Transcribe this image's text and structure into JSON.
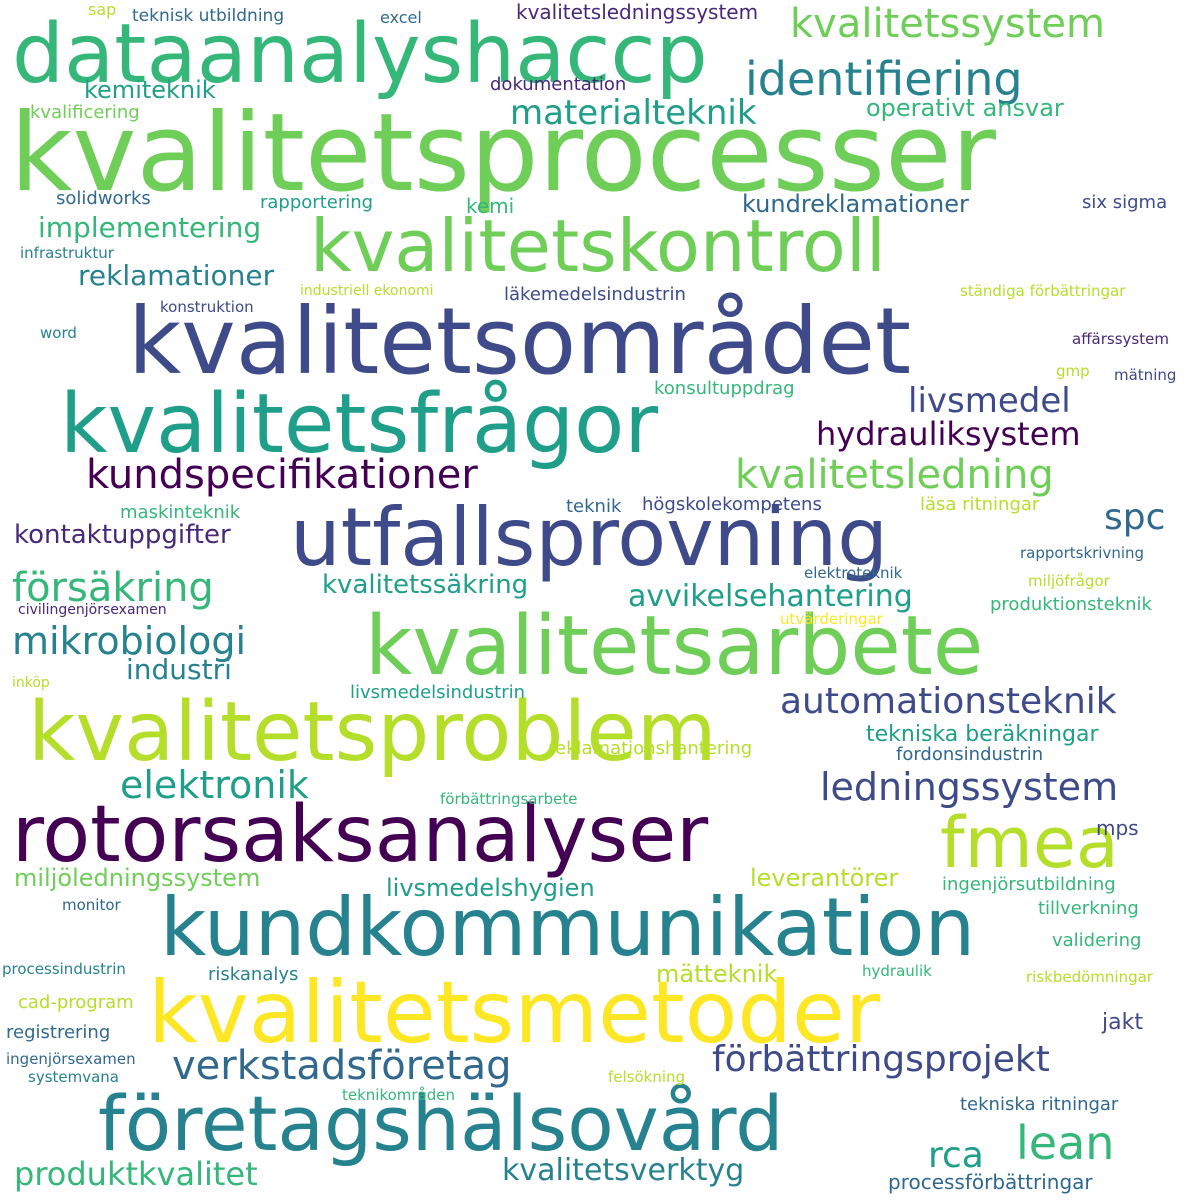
{
  "palette": {
    "deep_purple": "#440154",
    "purple": "#482878",
    "indigo": "#3e4a89",
    "blue": "#31688e",
    "teal_blue": "#26828e",
    "teal": "#1f9e89",
    "green_teal": "#35b779",
    "green": "#6ece58",
    "lime": "#b5de2b",
    "yellow": "#fde725"
  },
  "words": [
    "kvalitetsprocesser",
    "dataanalyshaccp",
    "kvalitetssystem",
    "identifiering",
    "kvalitetskontroll",
    "kvalitetsområdet",
    "kvalitetsfrågor",
    "utfallsprovning",
    "kvalitetsarbete",
    "kvalitetsproblem",
    "rotorsaksanalyser",
    "kundkommunikation",
    "kvalitetsmetoder",
    "företagshälsovård",
    "fmea",
    "kundspecifikationer",
    "kvalitetsledning",
    "hydrauliksystem",
    "livsmedel",
    "ledningssystem",
    "förbättringsprojekt",
    "verkstadsföretag",
    "automationsteknik",
    "lean",
    "materialteknik",
    "kemiteknik",
    "elektronik",
    "mikrobiologi",
    "försäkring",
    "produktkvalitet",
    "kvalitetsverktyg",
    "rca",
    "spc",
    "avvikelsehantering",
    "kvalitetssäkring",
    "kontaktuppgifter",
    "implementering",
    "reklamationer",
    "industri",
    "miljöledningssystem",
    "livsmedelshygien",
    "leverantörer",
    "kundreklamationer",
    "operativt ansvar",
    "tekniska beräkningar",
    "mätteknik",
    "kvalitetsledningssystem",
    "teknisk utbildning",
    "excel",
    "sap",
    "dokumentation",
    "kvalificering",
    "solidworks",
    "rapportering",
    "kemi",
    "six sigma",
    "infrastruktur",
    "industriell ekonomi",
    "läkemedelsindustrin",
    "ständiga förbättringar",
    "konstruktion",
    "word",
    "affärssystem",
    "gmp",
    "mätning",
    "konsultuppdrag",
    "maskinteknik",
    "teknik",
    "högskolekompetens",
    "läsa ritningar",
    "rapportskrivning",
    "elektroteknik",
    "miljöfrågor",
    "civilingenjörsexamen",
    "produktionsteknik",
    "utvärderingar",
    "inköp",
    "livsmedelsindustrin",
    "fordonsindustrin",
    "reklamationshantering",
    "förbättringsarbete",
    "mps",
    "ingenjörsutbildning",
    "monitor",
    "tillverkning",
    "validering",
    "processindustrin",
    "riskanalys",
    "hydraulik",
    "riskbedömningar",
    "cad-program",
    "jakt",
    "registrering",
    "ingenjörsexamen",
    "systemvana",
    "felsökning",
    "teknikområden",
    "tekniska ritningar",
    "processförbättringar"
  ]
}
